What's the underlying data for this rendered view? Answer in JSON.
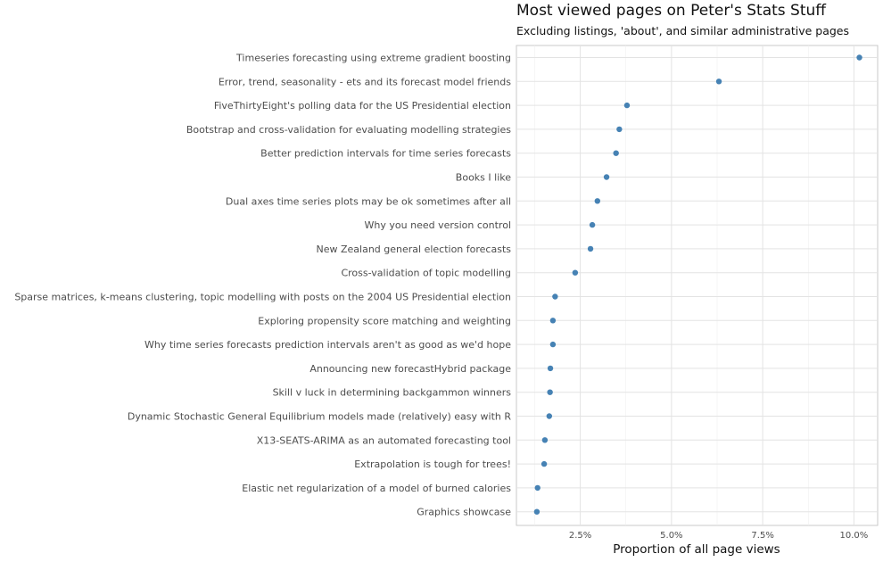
{
  "chart_data": {
    "type": "scatter",
    "title": "Most viewed pages on Peter's Stats Stuff",
    "subtitle": "Excluding listings, 'about', and similar administrative pages",
    "xlabel": "Proportion of all page views",
    "ylabel": "",
    "x_ticks": [
      {
        "value": 0.025,
        "label": "2.5%"
      },
      {
        "value": 0.05,
        "label": "5.0%"
      },
      {
        "value": 0.075,
        "label": "7.5%"
      },
      {
        "value": 0.1,
        "label": "10.0%"
      }
    ],
    "xlim": [
      0.0075,
      0.1065
    ],
    "grid": true,
    "point_color": "#4682b4",
    "categories": [
      "Timeseries forecasting using extreme gradient boosting",
      "Error, trend, seasonality - ets and its forecast model friends",
      "FiveThirtyEight's polling data for the US Presidential election",
      "Bootstrap and cross-validation for evaluating modelling strategies",
      "Better prediction intervals for time series forecasts",
      "Books I like",
      "Dual axes time series plots may be ok sometimes after all",
      "Why you need version control",
      "New Zealand general election forecasts",
      "Cross-validation of topic modelling",
      "Sparse matrices, k-means clustering, topic modelling with posts on the 2004 US Presidential election",
      "Exploring propensity score matching and weighting",
      "Why time series forecasts prediction intervals aren't as good as we'd hope",
      "Announcing new forecastHybrid package",
      "Skill v luck in determining backgammon winners",
      "Dynamic Stochastic General Equilibrium models made (relatively) easy with R",
      "X13-SEATS-ARIMA as an automated forecasting tool",
      "Extrapolation is tough for trees!",
      "Elastic net regularization of a model of burned calories",
      "Graphics showcase"
    ],
    "values": [
      0.1015,
      0.063,
      0.0378,
      0.0357,
      0.0348,
      0.0322,
      0.0297,
      0.0283,
      0.0278,
      0.0236,
      0.0181,
      0.0175,
      0.0175,
      0.0168,
      0.0167,
      0.0165,
      0.0153,
      0.0151,
      0.0133,
      0.0131
    ]
  }
}
